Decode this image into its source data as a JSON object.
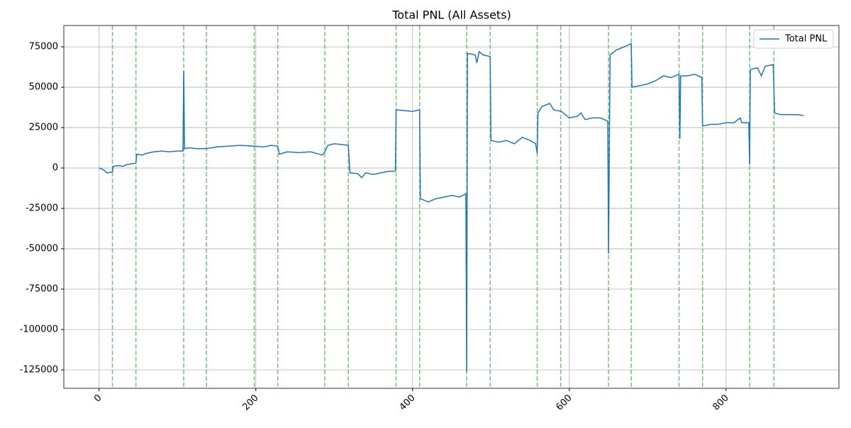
{
  "chart_data": {
    "type": "line",
    "title": "Total PNL (All Assets)",
    "x": [
      0,
      5,
      10,
      17,
      18,
      25,
      30,
      35,
      40,
      47,
      48,
      55,
      60,
      70,
      80,
      90,
      100,
      107,
      108,
      109,
      115,
      125,
      137,
      150,
      165,
      180,
      198,
      210,
      220,
      228,
      230,
      240,
      255,
      270,
      285,
      288,
      292,
      300,
      310,
      318,
      320,
      330,
      335,
      340,
      350,
      360,
      370,
      378,
      379,
      390,
      400,
      409,
      410,
      420,
      430,
      440,
      450,
      460,
      468,
      469,
      470,
      480,
      482,
      485,
      490,
      499,
      500,
      510,
      520,
      530,
      540,
      550,
      557,
      559,
      560,
      565,
      575,
      580,
      590,
      600,
      610,
      615,
      620,
      630,
      640,
      649,
      650,
      652,
      660,
      670,
      679,
      680,
      690,
      700,
      710,
      720,
      730,
      740,
      741,
      742,
      750,
      760,
      769,
      770,
      780,
      790,
      800,
      810,
      818,
      820,
      829,
      830,
      831,
      840,
      845,
      850,
      860,
      862,
      870,
      880,
      890,
      899
    ],
    "series": [
      {
        "name": "Total PNL",
        "color": "#1f77b4",
        "values": [
          0,
          -1000,
          -3000,
          -2500,
          1000,
          1500,
          1000,
          2000,
          2500,
          3000,
          8500,
          8000,
          9000,
          10000,
          10500,
          10000,
          10500,
          10500,
          60000,
          12000,
          12500,
          12000,
          12000,
          13000,
          13500,
          14000,
          13500,
          13000,
          14000,
          13500,
          8500,
          10000,
          9500,
          10000,
          8000,
          10000,
          14000,
          15000,
          14500,
          14000,
          -3000,
          -3500,
          -6000,
          -3000,
          -4000,
          -3000,
          -2000,
          -2000,
          36000,
          35500,
          35000,
          36000,
          -19000,
          -21000,
          -19000,
          -18000,
          -17000,
          -18000,
          -16000,
          -126000,
          71000,
          70000,
          65000,
          72000,
          70000,
          69000,
          17000,
          16000,
          17000,
          15000,
          19000,
          17000,
          15000,
          9000,
          34000,
          38000,
          40000,
          36000,
          35000,
          31000,
          32000,
          34000,
          30000,
          31000,
          31000,
          29000,
          -53000,
          70000,
          73000,
          75000,
          77000,
          50000,
          51000,
          52000,
          54000,
          57000,
          56000,
          58000,
          18000,
          57000,
          57000,
          58000,
          56000,
          26000,
          27000,
          27000,
          28000,
          28000,
          31000,
          28000,
          28000,
          2000,
          61000,
          62000,
          57000,
          63000,
          64000,
          34000,
          33000,
          33000,
          33000,
          32500
        ]
      }
    ],
    "vlines": {
      "color": "#2ca02c",
      "values": [
        17,
        47,
        108,
        137,
        198,
        228,
        288,
        318,
        379,
        409,
        469,
        499,
        559,
        589,
        650,
        679,
        740,
        770,
        830,
        861
      ]
    },
    "xlim": [
      -45,
      944
    ],
    "xticks": [
      0,
      200,
      400,
      600,
      800
    ],
    "ylim": [
      -136400,
      88200
    ],
    "yticks": [
      -125000,
      -100000,
      -75000,
      -50000,
      -25000,
      0,
      25000,
      50000,
      75000
    ],
    "grid": true,
    "legend": "upper right"
  }
}
